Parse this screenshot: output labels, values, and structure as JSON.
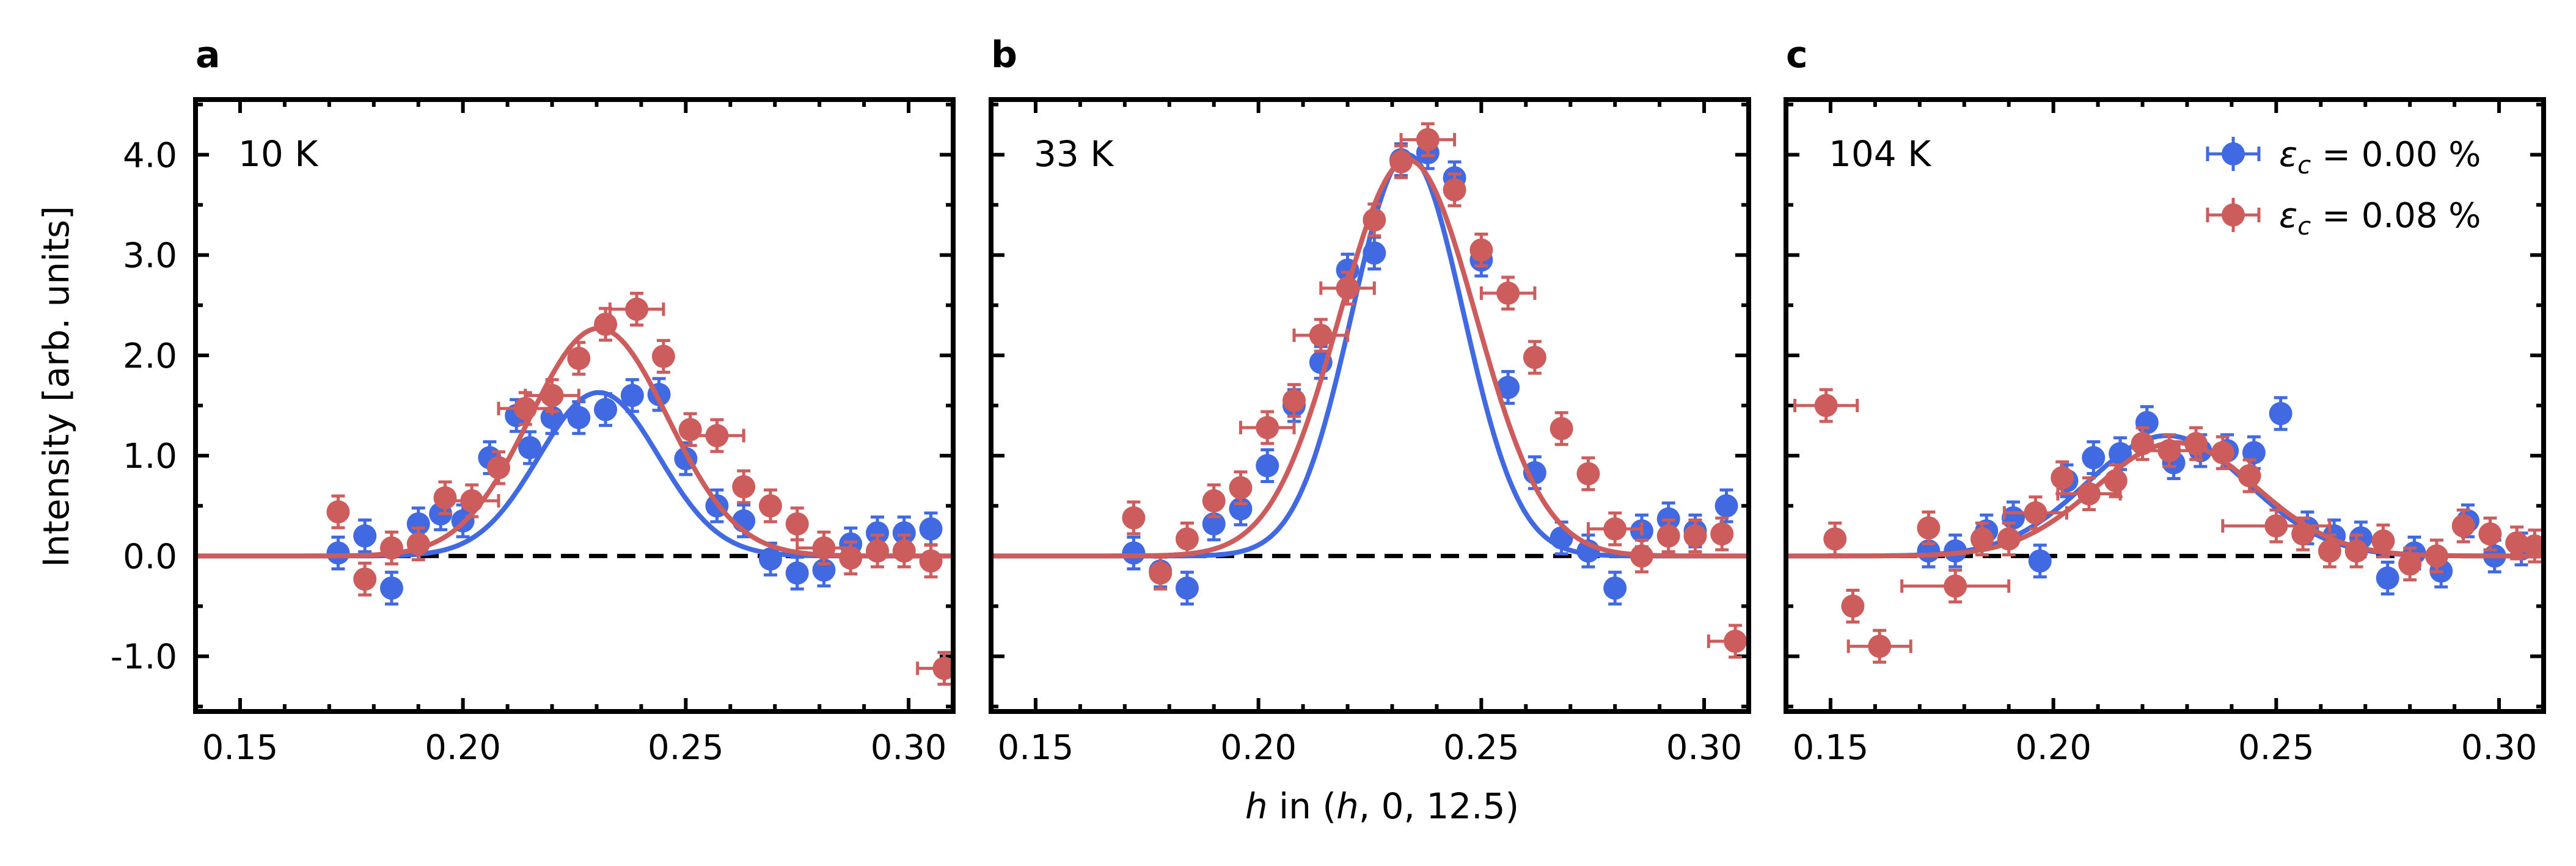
{
  "chart_data": {
    "type": "scatter",
    "xlabel": "h in (h, 0, 12.5)",
    "ylabel": "Intensity [arb. units]",
    "xlim": [
      0.14,
      0.31
    ],
    "ylim": [
      -1.55,
      4.55
    ],
    "xticks": [
      0.15,
      0.2,
      0.25,
      0.3
    ],
    "xtick_labels": [
      "0.15",
      "0.20",
      "0.25",
      "0.30"
    ],
    "yticks": [
      -1.0,
      0.0,
      1.0,
      2.0,
      3.0,
      4.0
    ],
    "ytick_labels": [
      "-1.0",
      "0.0",
      "1.0",
      "2.0",
      "3.0",
      "4.0"
    ],
    "baseline": 0.0,
    "legend": {
      "placement": "top-right",
      "entries": [
        {
          "label": "εc = 0.00 %",
          "color": "#4169e1"
        },
        {
          "label": "εc = 0.08 %",
          "color": "#cd5c5c"
        }
      ]
    },
    "panels": [
      {
        "letter": "a",
        "temperature": "10 K",
        "series": [
          {
            "name": "εc = 0.00 %",
            "color": "#4169e1",
            "fit": {
              "amp": 1.63,
              "center": 0.2305,
              "sigma": 0.0135
            },
            "x": [
              0.172,
              0.178,
              0.184,
              0.19,
              0.195,
              0.2,
              0.206,
              0.212,
              0.215,
              0.22,
              0.226,
              0.232,
              0.238,
              0.244,
              0.25,
              0.257,
              0.263,
              0.269,
              0.275,
              0.281,
              0.287,
              0.293,
              0.299,
              0.305
            ],
            "y": [
              0.03,
              0.2,
              -0.32,
              0.32,
              0.42,
              0.35,
              0.98,
              1.4,
              1.08,
              1.38,
              1.38,
              1.46,
              1.6,
              1.61,
              0.97,
              0.5,
              0.35,
              -0.03,
              -0.17,
              -0.14,
              0.12,
              0.23,
              0.23,
              0.27
            ],
            "xerr": [
              0,
              0,
              0,
              0,
              0,
              0,
              0,
              0,
              0,
              0,
              0,
              0,
              0,
              0,
              0,
              0,
              0,
              0,
              0,
              0,
              0,
              0,
              0,
              0
            ]
          },
          {
            "name": "εc = 0.08 %",
            "color": "#cd5c5c",
            "fit": {
              "amp": 2.27,
              "center": 0.2305,
              "sigma": 0.0155
            },
            "x": [
              0.172,
              0.178,
              0.184,
              0.19,
              0.196,
              0.202,
              0.208,
              0.214,
              0.22,
              0.226,
              0.232,
              0.239,
              0.245,
              0.251,
              0.257,
              0.263,
              0.269,
              0.275,
              0.281,
              0.287,
              0.293,
              0.299,
              0.305,
              0.308
            ],
            "y": [
              0.44,
              -0.23,
              0.08,
              0.12,
              0.58,
              0.55,
              0.88,
              1.47,
              1.6,
              1.97,
              2.31,
              2.46,
              1.99,
              1.26,
              1.2,
              0.69,
              0.5,
              0.32,
              0.08,
              -0.02,
              0.05,
              0.05,
              -0.05,
              -1.12
            ],
            "xerr": [
              0,
              0,
              0,
              0,
              0,
              0.006,
              0,
              0.006,
              0.006,
              0,
              0,
              0.006,
              0,
              0,
              0.006,
              0,
              0,
              0,
              0.006,
              0,
              0,
              0,
              0,
              0.006
            ]
          }
        ]
      },
      {
        "letter": "b",
        "temperature": "33 K",
        "series": [
          {
            "name": "εc = 0.00 %",
            "color": "#4169e1",
            "fit": {
              "amp": 4.0,
              "center": 0.2335,
              "sigma": 0.0125
            },
            "x": [
              0.172,
              0.178,
              0.184,
              0.19,
              0.196,
              0.202,
              0.208,
              0.214,
              0.22,
              0.226,
              0.232,
              0.238,
              0.244,
              0.25,
              0.256,
              0.262,
              0.268,
              0.274,
              0.28,
              0.286,
              0.292,
              0.298,
              0.305
            ],
            "y": [
              0.03,
              -0.15,
              -0.32,
              0.32,
              0.47,
              0.9,
              1.5,
              1.93,
              2.85,
              3.02,
              3.95,
              4.02,
              3.77,
              2.95,
              1.68,
              0.83,
              0.18,
              0.05,
              -0.32,
              0.25,
              0.37,
              0.25,
              0.5
            ],
            "xerr": [
              0,
              0,
              0,
              0,
              0,
              0,
              0,
              0,
              0,
              0,
              0,
              0,
              0,
              0,
              0,
              0,
              0,
              0,
              0,
              0,
              0,
              0,
              0
            ]
          },
          {
            "name": "εc = 0.08 %",
            "color": "#cd5c5c",
            "fit": {
              "amp": 3.95,
              "center": 0.2335,
              "sigma": 0.0153
            },
            "x": [
              0.172,
              0.178,
              0.184,
              0.19,
              0.196,
              0.202,
              0.208,
              0.214,
              0.22,
              0.226,
              0.232,
              0.238,
              0.244,
              0.25,
              0.256,
              0.262,
              0.268,
              0.274,
              0.28,
              0.286,
              0.292,
              0.298,
              0.304,
              0.307
            ],
            "y": [
              0.38,
              -0.17,
              0.17,
              0.55,
              0.68,
              1.28,
              1.55,
              2.2,
              2.67,
              3.35,
              3.93,
              4.15,
              3.65,
              3.05,
              2.62,
              1.98,
              1.27,
              0.82,
              0.27,
              0.0,
              0.2,
              0.2,
              0.22,
              -0.85
            ],
            "xerr": [
              0,
              0,
              0,
              0,
              0,
              0.006,
              0,
              0.006,
              0.006,
              0,
              0,
              0.006,
              0,
              0,
              0.006,
              0,
              0,
              0,
              0.006,
              0,
              0,
              0,
              0,
              0.006
            ]
          }
        ]
      },
      {
        "letter": "c",
        "temperature": "104 K",
        "series": [
          {
            "name": "εc = 0.00 %",
            "color": "#4169e1",
            "fit": {
              "amp": 1.2,
              "center": 0.2255,
              "sigma": 0.018
            },
            "x": [
              0.172,
              0.178,
              0.185,
              0.191,
              0.197,
              0.203,
              0.209,
              0.215,
              0.221,
              0.227,
              0.233,
              0.239,
              0.245,
              0.251,
              0.257,
              0.263,
              0.269,
              0.275,
              0.281,
              0.287,
              0.293,
              0.299,
              0.305
            ],
            "y": [
              0.05,
              0.05,
              0.25,
              0.38,
              -0.05,
              0.75,
              0.98,
              1.02,
              1.33,
              0.93,
              1.05,
              1.05,
              1.03,
              1.42,
              0.28,
              0.2,
              0.18,
              -0.22,
              0.03,
              -0.15,
              0.35,
              0.0,
              0.07
            ],
            "xerr": [
              0,
              0,
              0,
              0,
              0,
              0,
              0,
              0,
              0,
              0,
              0,
              0,
              0,
              0,
              0,
              0,
              0,
              0,
              0,
              0,
              0,
              0,
              0
            ]
          },
          {
            "name": "εc = 0.08 %",
            "color": "#cd5c5c",
            "fit": {
              "amp": 1.13,
              "center": 0.2275,
              "sigma": 0.018
            },
            "x": [
              0.149,
              0.151,
              0.155,
              0.161,
              0.172,
              0.178,
              0.184,
              0.19,
              0.196,
              0.202,
              0.208,
              0.214,
              0.22,
              0.226,
              0.232,
              0.238,
              0.244,
              0.25,
              0.256,
              0.262,
              0.268,
              0.274,
              0.28,
              0.286,
              0.292,
              0.298,
              0.304,
              0.308
            ],
            "y": [
              1.5,
              0.17,
              -0.5,
              -0.9,
              0.28,
              -0.3,
              0.17,
              0.17,
              0.43,
              0.78,
              0.62,
              0.75,
              1.12,
              1.05,
              1.12,
              1.03,
              0.8,
              0.3,
              0.22,
              0.05,
              0.05,
              0.15,
              -0.08,
              0.0,
              0.3,
              0.22,
              0.13,
              0.1
            ],
            "xerr": [
              0.007,
              0,
              0,
              0.007,
              0,
              0.012,
              0,
              0,
              0.007,
              0,
              0.007,
              0,
              0,
              0.007,
              0,
              0,
              0,
              0.012,
              0,
              0,
              0,
              0,
              0,
              0,
              0,
              0,
              0,
              0
            ]
          }
        ]
      }
    ]
  }
}
